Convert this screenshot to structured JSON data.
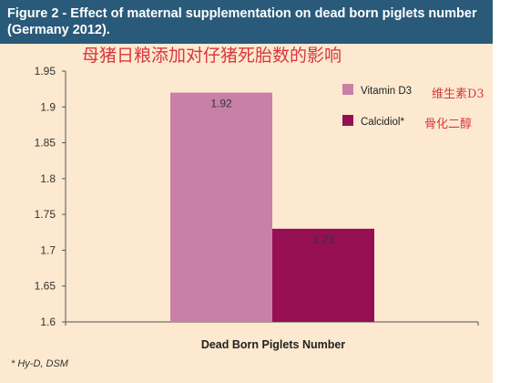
{
  "header": {
    "title": "Figure 2 - Effect of maternal supplementation on dead born piglets number (Germany 2012)."
  },
  "overlay": {
    "chinese_title": "母猪日粮添加对仔猪死胎数的影响",
    "legend_cn_1": "维生素D3",
    "legend_cn_2": "骨化二醇"
  },
  "footnote": "* Hy-D, DSM",
  "colors": {
    "header_bg": "#2a5a7a",
    "panel_bg": "#fce9cf",
    "vitamin_d3": "#c880a8",
    "calcidiol": "#960f55"
  },
  "chart_data": {
    "type": "bar",
    "xlabel": "Dead Born Piglets Number",
    "ylim": [
      1.6,
      1.95
    ],
    "yticks": [
      "1.6",
      "1.65",
      "1.7",
      "1.75",
      "1.8",
      "1.85",
      "1.9",
      "1.95"
    ],
    "grid": false,
    "legend_placement": "top-right",
    "series": [
      {
        "name": "Vitamin D3",
        "value": 1.92,
        "label": "1.92",
        "color": "#c880a8"
      },
      {
        "name": "Calcidiol*",
        "value": 1.73,
        "label": "1.73",
        "color": "#960f55"
      }
    ]
  }
}
